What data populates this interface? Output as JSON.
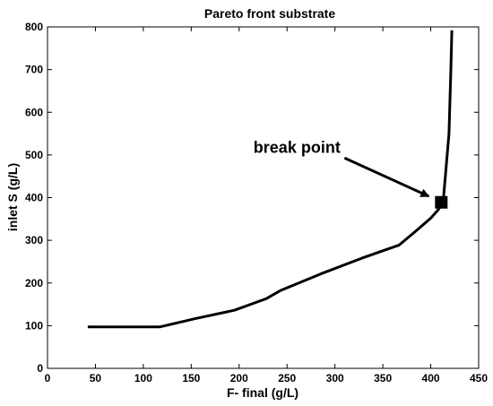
{
  "chart_data": {
    "type": "line",
    "title": "Pareto front substrate",
    "xlabel": "F- final (g/L)",
    "ylabel": "inlet S (g/L)",
    "xlim": [
      0,
      450
    ],
    "ylim": [
      0,
      800
    ],
    "xticks": [
      0,
      50,
      100,
      150,
      200,
      250,
      300,
      350,
      400,
      450
    ],
    "yticks": [
      0,
      100,
      200,
      300,
      400,
      500,
      600,
      700,
      800
    ],
    "grid": false,
    "legend": "none",
    "line_color": "#000000",
    "series": [
      {
        "x": [
          42,
          117,
          155,
          195,
          228,
          243,
          285,
          328,
          367,
          383,
          400,
          408,
          413,
          419,
          421,
          422
        ],
        "y": [
          97,
          97,
          117,
          136,
          163,
          182,
          221,
          258,
          289,
          319,
          352,
          372,
          392,
          550,
          700,
          792
        ]
      }
    ],
    "markers": [
      {
        "x": 411,
        "y": 389,
        "shape": "square"
      }
    ],
    "annotations": [
      {
        "text": "break point",
        "x": 215,
        "y": 505,
        "arrow_from": [
          310,
          493
        ],
        "arrow_to": [
          398,
          403
        ]
      }
    ]
  }
}
